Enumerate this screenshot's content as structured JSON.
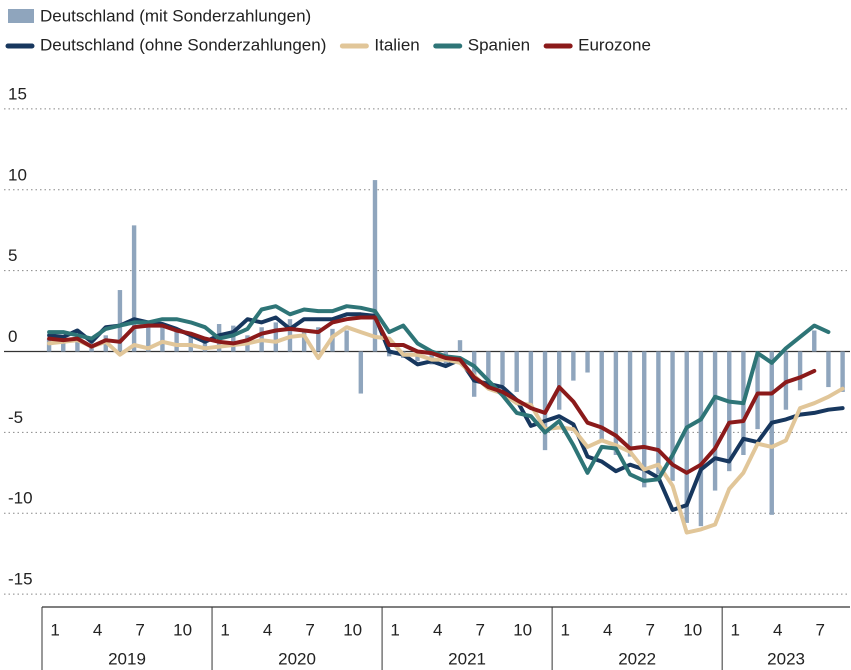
{
  "chart_data": {
    "type": "combo",
    "legend": "top",
    "categories": [
      "1",
      null,
      null,
      "4",
      null,
      null,
      "7",
      null,
      null,
      "10",
      null,
      null,
      "1",
      null,
      null,
      "4",
      null,
      null,
      "7",
      null,
      null,
      "10",
      null,
      null,
      "1",
      null,
      null,
      "4",
      null,
      null,
      "7",
      null,
      null,
      "10",
      null,
      null,
      "1",
      null,
      null,
      "4",
      null,
      null,
      "7",
      null,
      null,
      "10",
      null,
      null,
      "1",
      null,
      null,
      "4",
      null,
      null,
      "7",
      null,
      null
    ],
    "years": [
      "2019",
      "2020",
      "2021",
      "2022",
      "2023"
    ],
    "ylim": [
      -15.8,
      15.8
    ],
    "yticks": [
      -15,
      -10,
      -5,
      0,
      5,
      10,
      15
    ],
    "grid": true,
    "series": [
      {
        "name": "Deutschland (mit Sonderzahlungen)",
        "type": "bar",
        "color": "#8fa5bd",
        "values": [
          0.8,
          0.6,
          1.0,
          0.4,
          1.0,
          3.8,
          7.8,
          1.8,
          1.5,
          1.3,
          1.0,
          0.9,
          1.7,
          1.6,
          1.0,
          1.5,
          1.8,
          2.0,
          1.2,
          1.5,
          1.4,
          1.3,
          -2.6,
          10.6,
          -0.3,
          -0.4,
          -0.6,
          -0.8,
          -0.9,
          0.7,
          -2.8,
          -2.0,
          -2.1,
          -2.5,
          -3.5,
          -6.1,
          -3.6,
          -1.8,
          -1.3,
          -5.6,
          -6.4,
          -6.5,
          -8.4,
          -7.6,
          -8.0,
          -10.6,
          -10.8,
          -8.6,
          -7.4,
          -6.4,
          -4.8,
          -10.1,
          -3.6,
          -2.4,
          1.3,
          -2.2,
          -2.5
        ]
      },
      {
        "name": "Deutschland (ohne Sonderzahlungen)",
        "type": "line",
        "color": "#17375e",
        "values": [
          1.0,
          0.9,
          1.3,
          0.6,
          1.5,
          1.6,
          2.0,
          1.8,
          1.7,
          1.4,
          1.0,
          0.6,
          1.0,
          1.2,
          2.0,
          1.8,
          2.1,
          1.4,
          2.0,
          2.0,
          2.0,
          2.3,
          2.3,
          2.2,
          0.0,
          -0.2,
          -0.8,
          -0.6,
          -0.9,
          -0.5,
          -1.8,
          -2.0,
          -2.2,
          -3.0,
          -4.6,
          -4.3,
          -4.0,
          -4.5,
          -6.5,
          -6.8,
          -7.4,
          -7.0,
          -7.3,
          -7.8,
          -9.8,
          -9.5,
          -7.3,
          -6.6,
          -6.8,
          -5.4,
          -5.6,
          -4.4,
          -4.2,
          -3.9,
          -3.8,
          -3.6,
          -3.5
        ]
      },
      {
        "name": "Italien",
        "type": "line",
        "color": "#e1c699",
        "values": [
          0.5,
          0.6,
          0.7,
          0.3,
          0.6,
          -0.2,
          0.4,
          0.2,
          0.6,
          0.4,
          0.4,
          0.2,
          0.3,
          0.4,
          0.5,
          0.7,
          0.6,
          0.9,
          1.0,
          -0.4,
          0.9,
          1.5,
          1.2,
          0.9,
          0.8,
          -0.2,
          -0.2,
          -0.5,
          -0.5,
          -0.7,
          -1.5,
          -2.3,
          -2.6,
          -3.2,
          -3.3,
          -4.8,
          -4.7,
          -4.8,
          -5.9,
          -5.5,
          -5.8,
          -6.2,
          -7.3,
          -7.0,
          -8.3,
          -11.2,
          -11.0,
          -10.7,
          -8.5,
          -7.5,
          -5.7,
          -5.9,
          -5.5,
          -3.5,
          -3.2,
          -2.8,
          -2.3
        ]
      },
      {
        "name": "Spanien",
        "type": "line",
        "color": "#2e7577",
        "values": [
          1.2,
          1.2,
          1.0,
          0.8,
          1.4,
          1.6,
          1.8,
          1.8,
          2.0,
          2.0,
          1.8,
          1.5,
          0.8,
          1.0,
          1.4,
          2.6,
          2.8,
          2.3,
          2.6,
          2.5,
          2.5,
          2.8,
          2.7,
          2.5,
          1.2,
          1.6,
          0.5,
          0.0,
          -0.3,
          -0.4,
          -0.9,
          -1.8,
          -2.7,
          -3.8,
          -4.0,
          -5.0,
          -4.3,
          -5.8,
          -7.5,
          -5.9,
          -6.0,
          -7.6,
          -8.0,
          -7.9,
          -6.4,
          -4.7,
          -4.2,
          -2.8,
          -3.1,
          -3.2,
          -0.1,
          -0.7,
          0.2,
          0.9,
          1.6,
          1.2,
          null
        ]
      },
      {
        "name": "Eurozone",
        "type": "line",
        "color": "#8b1a1a",
        "values": [
          0.8,
          0.7,
          0.8,
          0.3,
          0.7,
          0.6,
          1.5,
          1.6,
          1.6,
          1.3,
          1.1,
          0.8,
          0.6,
          0.5,
          0.7,
          1.1,
          1.3,
          1.4,
          1.3,
          1.2,
          1.8,
          2.0,
          2.1,
          2.1,
          0.4,
          0.4,
          0.0,
          -0.1,
          -0.4,
          -0.5,
          -1.6,
          -2.2,
          -2.5,
          -3.0,
          -3.5,
          -3.8,
          -2.2,
          -3.1,
          -4.4,
          -4.7,
          -5.2,
          -6.0,
          -5.9,
          -6.1,
          -7.0,
          -7.5,
          -7.0,
          -6.0,
          -4.4,
          -4.3,
          -2.6,
          -2.6,
          -1.9,
          -1.6,
          -1.2,
          null,
          null
        ]
      }
    ]
  }
}
